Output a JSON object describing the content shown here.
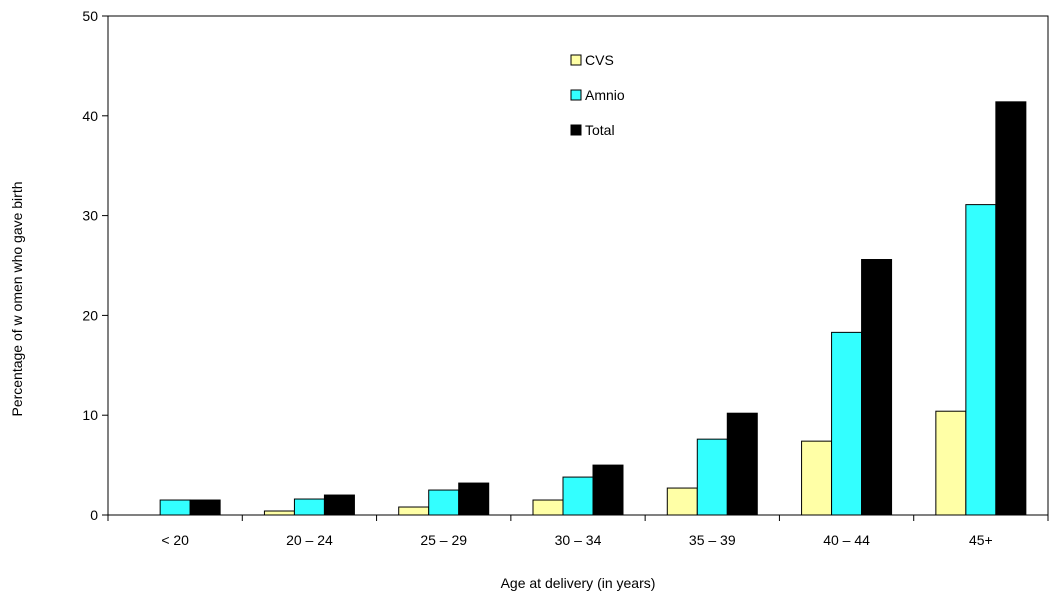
{
  "chart_data": {
    "type": "bar",
    "title": "",
    "xlabel": "Age at delivery (in years)",
    "ylabel": "Percentage of w omen who gave birth",
    "ylim": [
      0,
      50
    ],
    "yticks": [
      0,
      10,
      20,
      30,
      40,
      50
    ],
    "categories": [
      "< 20",
      "20 – 24",
      "25 – 29",
      "30 – 34",
      "35 – 39",
      "40 – 44",
      "45+"
    ],
    "series": [
      {
        "name": "CVS",
        "color": "#ffffa6",
        "values": [
          0,
          0.4,
          0.8,
          1.5,
          2.7,
          7.4,
          10.4
        ]
      },
      {
        "name": "Amnio",
        "color": "#33ffff",
        "values": [
          1.5,
          1.6,
          2.5,
          3.8,
          7.6,
          18.3,
          31.1
        ]
      },
      {
        "name": "Total",
        "color": "#000000",
        "values": [
          1.5,
          2.0,
          3.2,
          5.0,
          10.2,
          25.6,
          41.4
        ]
      }
    ],
    "grid": false,
    "legend_position": "top-center"
  }
}
